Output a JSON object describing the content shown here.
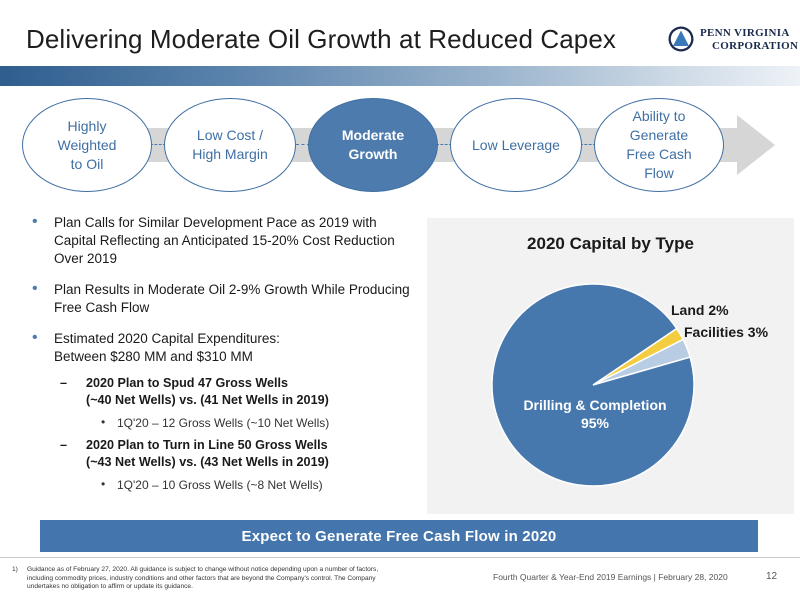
{
  "title": "Delivering Moderate Oil Growth at Reduced Capex",
  "logo": {
    "line1": "PENN VIRGINIA",
    "line2": "CORPORATION",
    "icon": "triangle-emblem-icon"
  },
  "pillars": [
    {
      "lines": [
        "Highly",
        "Weighted",
        "to Oil"
      ],
      "active": false
    },
    {
      "lines": [
        "Low Cost /",
        "High Margin"
      ],
      "active": false
    },
    {
      "lines": [
        "Moderate",
        "Growth"
      ],
      "active": true
    },
    {
      "lines": [
        "Low Leverage"
      ],
      "active": false
    },
    {
      "lines": [
        "Ability to",
        "Generate",
        "Free Cash",
        "Flow"
      ],
      "active": false
    }
  ],
  "bullets": {
    "b1_1": "Plan Calls for Similar Development Pace as 2019 with Capital Reflecting an Anticipated 15-20% Cost Reduction Over 2019",
    "b1_2": "Plan Results in Moderate Oil 2-9% Growth While Producing Free Cash Flow",
    "b1_3_line1": "Estimated 2020 Capital Expenditures:",
    "b1_3_line2": "Between $280 MM and $310 MM",
    "b2_1_line1": "2020 Plan to Spud 47 Gross Wells",
    "b2_1_line2": "(~40 Net Wells) vs. (41 Net Wells in 2019)",
    "b3_1": "1Q'20 – 12 Gross Wells (~10 Net Wells)",
    "b2_2_line1": "2020 Plan to Turn in Line 50 Gross Wells",
    "b2_2_line2": "(~43 Net Wells) vs. (43 Net Wells in 2019)",
    "b3_2": "1Q'20 – 10 Gross Wells (~8 Net Wells)"
  },
  "chart_data": {
    "type": "pie",
    "title": "2020 Capital by Type",
    "slices": [
      {
        "label": "Drilling & Completion",
        "value": 95,
        "display": "95%",
        "color": "#4677ad"
      },
      {
        "label": "Land",
        "value": 2,
        "display": "2%",
        "color": "#f3cd3f"
      },
      {
        "label": "Facilities",
        "value": 3,
        "display": "3%",
        "color": "#b8cde3"
      }
    ]
  },
  "callout": "Expect to Generate Free Cash Flow in 2020",
  "footnote": {
    "number": "1)",
    "text": "Guidance as of February 27, 2020.  All guidance is subject to change without notice depending upon a number of factors, including commodity prices, industry conditions and other factors that are beyond the Company's control.  The Company undertakes no obligation to affirm or update its guidance."
  },
  "footer": "Fourth Quarter & Year-End 2019 Earnings | February 28, 2020",
  "page_number": "12"
}
